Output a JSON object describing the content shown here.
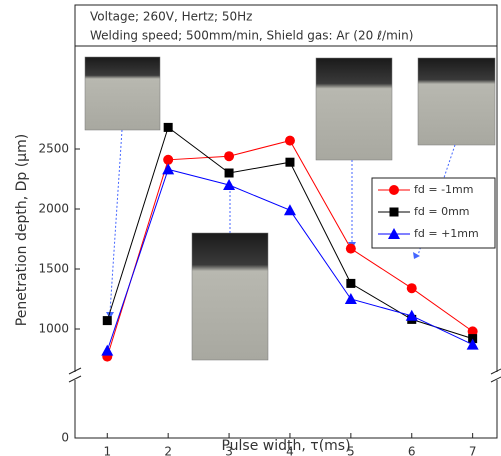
{
  "chart_data": {
    "type": "line",
    "header": [
      "Voltage; 260V, Hertz; 50Hz",
      "Welding speed; 500mm/min,  Shield gas:  Ar (20 ℓ/min)"
    ],
    "x_label": "Pulse width, τ(ms)",
    "y_label": "Penetration depth, Dp (μm)",
    "x": [
      1,
      2,
      3,
      4,
      5,
      6,
      7
    ],
    "series": [
      {
        "name": "fd = -1mm",
        "color": "#ff0000",
        "marker": "circle",
        "values": [
          770,
          2410,
          2440,
          2570,
          1670,
          1340,
          980
        ]
      },
      {
        "name": "fd =  0mm",
        "color": "#000000",
        "marker": "square",
        "values": [
          1070,
          2680,
          2300,
          2390,
          1380,
          1080,
          920
        ]
      },
      {
        "name": "fd = +1mm",
        "color": "#0000ff",
        "marker": "triangle",
        "values": [
          820,
          2330,
          2200,
          1990,
          1250,
          1110,
          870
        ]
      }
    ],
    "xlim": [
      0.47,
      7.4
    ],
    "xticks": [
      1,
      2,
      3,
      4,
      5,
      6,
      7
    ],
    "ylim": [
      0,
      3700
    ],
    "yticks": [
      0,
      1000,
      1500,
      2000,
      2500
    ],
    "ybreak": 700,
    "grid": false
  }
}
